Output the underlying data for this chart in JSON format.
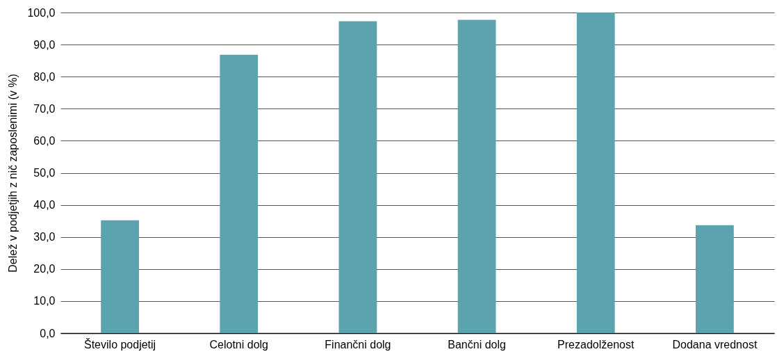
{
  "chart_data": {
    "type": "bar",
    "ylabel": "Delež v podjetjih z nič zaposlenimi (v %)",
    "categories": [
      "Število podjetij",
      "Celotni dolg",
      "Finančni dolg",
      "Bančni dolg",
      "Prezadolženost",
      "Dodana vrednost"
    ],
    "values": [
      35.2,
      86.8,
      97.3,
      97.7,
      100,
      33.7
    ],
    "color": "#5ba3ae",
    "ylim": [
      0,
      100
    ],
    "yticks": [
      {
        "value": 0,
        "label": "0,0"
      },
      {
        "value": 10,
        "label": "10,0"
      },
      {
        "value": 20,
        "label": "20,0"
      },
      {
        "value": 30,
        "label": "30,0"
      },
      {
        "value": 40,
        "label": "40,0"
      },
      {
        "value": 50,
        "label": "50,0"
      },
      {
        "value": 60,
        "label": "60,0"
      },
      {
        "value": 70,
        "label": "70,0"
      },
      {
        "value": 80,
        "label": "80,0"
      },
      {
        "value": 90,
        "label": "90,0"
      },
      {
        "value": 100,
        "label": "100,0"
      }
    ],
    "grid": "y"
  }
}
